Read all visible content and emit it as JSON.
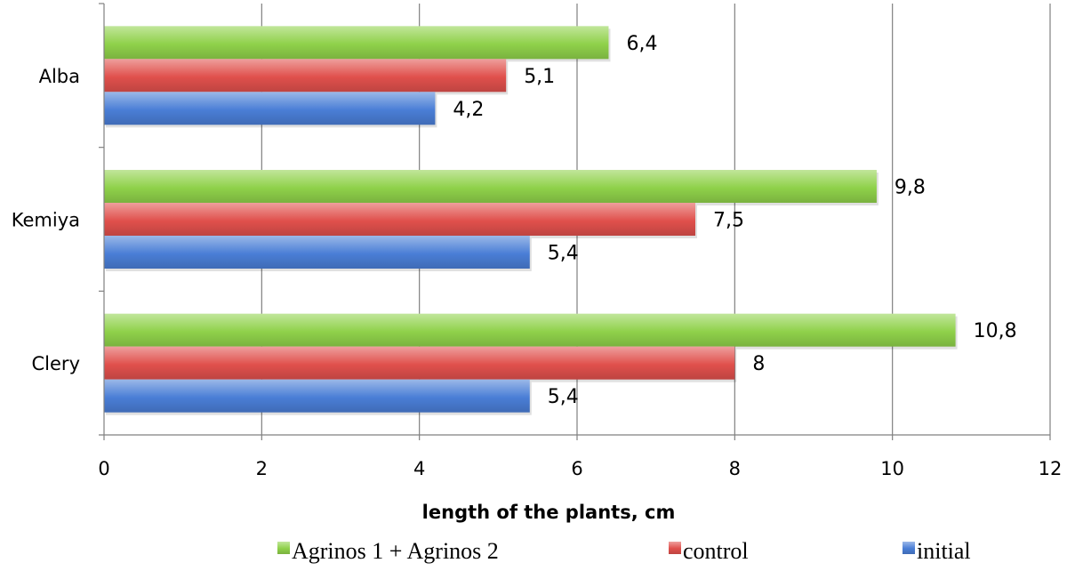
{
  "chart_data": {
    "type": "bar",
    "orientation": "horizontal",
    "categories": [
      "Clery",
      "Kemiya",
      "Alba"
    ],
    "series": [
      {
        "name": "initial",
        "values": [
          5.4,
          5.4,
          4.2
        ],
        "labels": [
          "5,4",
          "5,4",
          "4,2"
        ],
        "color": "#4a7ed6"
      },
      {
        "name": "control",
        "values": [
          8,
          7.5,
          5.1
        ],
        "labels": [
          "8",
          "7,5",
          "5,1"
        ],
        "color": "#e0504c"
      },
      {
        "name": "Agrinos 1 + Agrinos 2",
        "values": [
          10.8,
          9.8,
          6.4
        ],
        "labels": [
          "10,8",
          "9,8",
          "6,4"
        ],
        "color": "#8fd14a"
      }
    ],
    "xlim": [
      0,
      12
    ],
    "xticks": [
      0,
      2,
      4,
      6,
      8,
      10,
      12
    ],
    "xlabel": "length of the plants, cm",
    "ylabel": "",
    "title": "",
    "grid": "vertical",
    "legend": "bottom",
    "legend_order": [
      "Agrinos 1 + Agrinos 2",
      "control",
      "initial"
    ]
  }
}
